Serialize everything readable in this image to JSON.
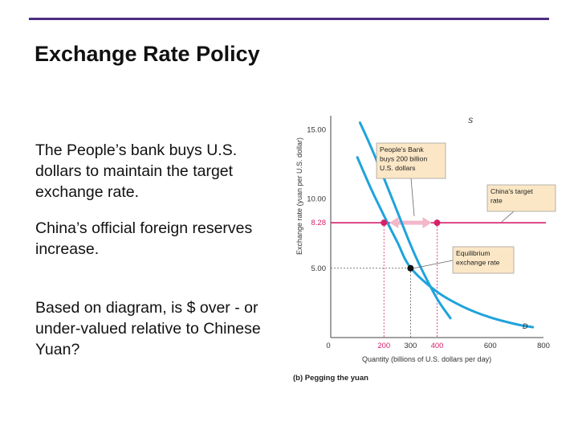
{
  "slide": {
    "title": "Exchange Rate Policy",
    "bullets": [
      "The People’s bank buys U.S. dollars to maintain the target exchange rate.",
      "China’s official foreign reserves increase.",
      "Based on diagram, is $ over - or under-valued relative to Chinese Yuan?"
    ]
  },
  "chart_data": {
    "type": "line",
    "caption": "(b) Pegging the yuan",
    "xlabel": "Quantity (billions of U.S. dollars per day)",
    "ylabel": "Exchange rate (yuan per U.S. dollar)",
    "xlim": [
      0,
      800
    ],
    "ylim": [
      0,
      16
    ],
    "x_ticks": [
      0,
      200,
      300,
      400,
      600,
      800
    ],
    "y_ticks": [
      5.0,
      8.28,
      10.0,
      15.0
    ],
    "x_tick_labels": [
      "0",
      "200",
      "300",
      "400",
      "600",
      "800"
    ],
    "y_tick_labels": [
      "5.00",
      "8.28",
      "10.00",
      "15.00"
    ],
    "highlight_ticks": {
      "x": [
        200,
        400
      ],
      "y": [
        8.28
      ]
    },
    "series": [
      {
        "name": "S",
        "points": [
          [
            110,
            15.5
          ],
          [
            150,
            13.8
          ],
          [
            200,
            11.5
          ],
          [
            250,
            9.1
          ],
          [
            300,
            6.7
          ],
          [
            340,
            5.0
          ],
          [
            400,
            2.8
          ],
          [
            450,
            1.4
          ]
        ]
      },
      {
        "name": "D",
        "points": [
          [
            100,
            13.0
          ],
          [
            150,
            10.8
          ],
          [
            200,
            8.8
          ],
          [
            250,
            6.9
          ],
          [
            300,
            5.05
          ],
          [
            400,
            3.3
          ],
          [
            500,
            2.2
          ],
          [
            600,
            1.45
          ],
          [
            700,
            0.95
          ],
          [
            760,
            0.75
          ]
        ]
      }
    ],
    "target_rate": 8.28,
    "points": [
      {
        "x": 200,
        "y": 8.28,
        "color": "#d6206b"
      },
      {
        "x": 400,
        "y": 8.28,
        "color": "#d6206b"
      },
      {
        "x": 300,
        "y": 5.0,
        "color": "#111111"
      }
    ],
    "annotations": [
      {
        "key": "bank",
        "lines": [
          "People's Bank",
          "buys 200 billion",
          "U.S. dollars"
        ]
      },
      {
        "key": "target",
        "lines": [
          "China's target",
          "rate"
        ]
      },
      {
        "key": "equilibrium",
        "lines": [
          "Equilibrium",
          "exchange rate"
        ]
      }
    ],
    "colors": {
      "curve": "#1fa3dc",
      "target": "#d6206b",
      "box": "#fbe7c6",
      "arrow": "#f2b7c9"
    }
  }
}
